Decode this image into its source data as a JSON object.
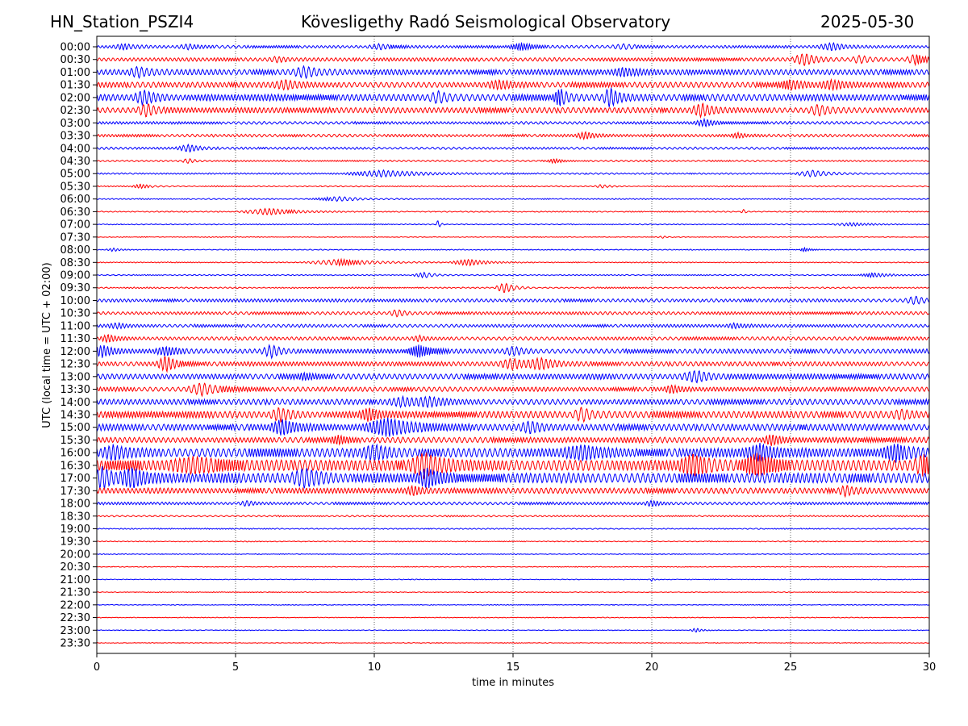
{
  "header": {
    "station": "HN_Station_PSZI4",
    "observatory": "Kövesligethy Radó Seismological Observatory",
    "date": "2025-05-30"
  },
  "chart_data": {
    "type": "line",
    "subtype": "helicorder",
    "xlabel": "time in minutes",
    "ylabel": "UTC (local time = UTC + 02:00)",
    "xlim": [
      0,
      30
    ],
    "xticks": [
      "0",
      "5",
      "10",
      "15",
      "20",
      "25",
      "30"
    ],
    "grid": "vertical dotted lines at 5-minute ticks",
    "colors": [
      "#0000ff",
      "#ff0000"
    ],
    "amplitude_note": "relative amplitudes estimated visually; events are [minute, amplitude, duration_minutes]",
    "rows": [
      {
        "label": "00:00",
        "noise": 1.2,
        "events": [
          [
            1,
            2,
            0.5
          ],
          [
            3.3,
            2,
            0.5
          ],
          [
            10.2,
            2,
            0.5
          ],
          [
            15.3,
            3,
            0.5
          ],
          [
            19,
            2,
            0.5
          ],
          [
            26.5,
            3,
            0.6
          ]
        ]
      },
      {
        "label": "00:30",
        "noise": 1.6,
        "events": [
          [
            6.5,
            2,
            0.4
          ],
          [
            25.5,
            5,
            0.5
          ],
          [
            27.5,
            3,
            0.4
          ],
          [
            29.5,
            4,
            0.4
          ]
        ]
      },
      {
        "label": "01:00",
        "noise": 2.5,
        "events": [
          [
            1.5,
            4,
            0.4
          ],
          [
            7.5,
            4,
            0.5
          ],
          [
            19,
            3,
            0.5
          ]
        ]
      },
      {
        "label": "01:30",
        "noise": 2.5,
        "events": [
          [
            6.8,
            3,
            0.5
          ],
          [
            14.5,
            3,
            0.5
          ],
          [
            25,
            3,
            0.5
          ],
          [
            26.5,
            3,
            0.5
          ]
        ]
      },
      {
        "label": "02:00",
        "noise": 3,
        "events": [
          [
            1.7,
            5,
            0.4
          ],
          [
            12.3,
            4,
            0.4
          ],
          [
            16.7,
            7,
            0.3
          ],
          [
            18.5,
            8,
            0.3
          ]
        ]
      },
      {
        "label": "02:30",
        "noise": 2.5,
        "events": [
          [
            1.8,
            5,
            0.4
          ],
          [
            21.8,
            5,
            0.4
          ],
          [
            26,
            4,
            0.4
          ]
        ]
      },
      {
        "label": "03:00",
        "noise": 1.2,
        "events": [
          [
            21.9,
            3,
            0.4
          ]
        ]
      },
      {
        "label": "03:30",
        "noise": 1.2,
        "events": [
          [
            17.6,
            3,
            0.4
          ],
          [
            23.1,
            2,
            0.3
          ]
        ]
      },
      {
        "label": "04:00",
        "noise": 1,
        "events": [
          [
            3.3,
            3,
            0.5
          ]
        ]
      },
      {
        "label": "04:30",
        "noise": 0.6,
        "events": [
          [
            3.3,
            2,
            0.3
          ],
          [
            16.5,
            2,
            0.3
          ]
        ]
      },
      {
        "label": "05:00",
        "noise": 0.6,
        "events": [
          [
            10.3,
            3,
            1.5
          ],
          [
            25.8,
            3,
            0.7
          ]
        ]
      },
      {
        "label": "05:30",
        "noise": 0.4,
        "events": [
          [
            1.6,
            2,
            0.4
          ],
          [
            18.2,
            1.5,
            0.3
          ]
        ]
      },
      {
        "label": "06:00",
        "noise": 0.4,
        "events": [
          [
            8.7,
            2,
            1
          ]
        ]
      },
      {
        "label": "06:30",
        "noise": 0.4,
        "events": [
          [
            6.2,
            3,
            1.2
          ],
          [
            23.3,
            2,
            0.1
          ]
        ]
      },
      {
        "label": "07:00",
        "noise": 0.3,
        "events": [
          [
            12.3,
            4,
            0.1
          ],
          [
            27.2,
            1.5,
            0.8
          ]
        ]
      },
      {
        "label": "07:30",
        "noise": 0.2,
        "events": [
          [
            20.4,
            1,
            0.2
          ]
        ]
      },
      {
        "label": "08:00",
        "noise": 0.3,
        "events": [
          [
            0.6,
            1.5,
            0.3
          ],
          [
            25.5,
            2,
            0.2
          ]
        ]
      },
      {
        "label": "08:30",
        "noise": 0.3,
        "events": [
          [
            8.8,
            3,
            1.5
          ],
          [
            13.4,
            3,
            0.8
          ]
        ]
      },
      {
        "label": "09:00",
        "noise": 0.4,
        "events": [
          [
            11.8,
            2.5,
            0.5
          ],
          [
            28,
            2,
            0.6
          ]
        ]
      },
      {
        "label": "09:30",
        "noise": 0.5,
        "events": [
          [
            14.7,
            5,
            0.4
          ]
        ]
      },
      {
        "label": "10:00",
        "noise": 1.4,
        "events": [
          [
            29.5,
            3,
            0.5
          ]
        ]
      },
      {
        "label": "10:30",
        "noise": 1.3,
        "events": [
          [
            10.8,
            3,
            0.3
          ]
        ]
      },
      {
        "label": "11:00",
        "noise": 1.3,
        "events": [
          [
            0.7,
            2,
            0.4
          ],
          [
            23,
            2,
            0.4
          ]
        ]
      },
      {
        "label": "11:30",
        "noise": 1.5,
        "events": [
          [
            0.4,
            3,
            0.3
          ],
          [
            11.6,
            2,
            0.3
          ]
        ]
      },
      {
        "label": "12:00",
        "noise": 2,
        "events": [
          [
            0.2,
            5,
            0.4
          ],
          [
            2.5,
            3,
            0.5
          ],
          [
            6.3,
            5,
            0.4
          ],
          [
            11.6,
            5,
            0.5
          ],
          [
            15,
            3,
            0.4
          ]
        ]
      },
      {
        "label": "12:30",
        "noise": 2,
        "events": [
          [
            2.5,
            7,
            0.4
          ],
          [
            15,
            4,
            0.6
          ],
          [
            16,
            4,
            0.6
          ]
        ]
      },
      {
        "label": "13:00",
        "noise": 2.5,
        "events": [
          [
            7.5,
            2,
            0.3
          ],
          [
            21.6,
            4,
            0.6
          ]
        ]
      },
      {
        "label": "13:30",
        "noise": 2,
        "events": [
          [
            3.8,
            5,
            0.6
          ],
          [
            20.7,
            3,
            0.3
          ]
        ]
      },
      {
        "label": "14:00",
        "noise": 2.5,
        "events": [
          [
            11,
            3,
            0.6
          ],
          [
            12,
            3,
            0.6
          ]
        ]
      },
      {
        "label": "14:30",
        "noise": 3,
        "events": [
          [
            6.6,
            5,
            0.4
          ],
          [
            9.8,
            5,
            0.4
          ],
          [
            17.5,
            5,
            0.4
          ],
          [
            29,
            3,
            0.4
          ]
        ]
      },
      {
        "label": "15:00",
        "noise": 3,
        "events": [
          [
            6.7,
            6,
            0.5
          ],
          [
            10.5,
            7,
            1
          ],
          [
            15.6,
            4,
            0.4
          ]
        ]
      },
      {
        "label": "15:30",
        "noise": 2.5,
        "events": [
          [
            8.7,
            3,
            0.3
          ],
          [
            24.3,
            4,
            0.3
          ]
        ]
      },
      {
        "label": "16:00",
        "noise": 4,
        "events": [
          [
            0.6,
            5,
            0.5
          ],
          [
            10,
            5,
            0.5
          ],
          [
            17.5,
            5,
            0.8
          ],
          [
            23.9,
            6,
            0.6
          ],
          [
            28.8,
            6,
            0.6
          ]
        ]
      },
      {
        "label": "16:30",
        "noise": 5,
        "events": [
          [
            3.5,
            5,
            1
          ],
          [
            11.8,
            9,
            0.6
          ],
          [
            21.5,
            8,
            0.6
          ],
          [
            23.8,
            8,
            0.6
          ],
          [
            29.8,
            7,
            0.4
          ]
        ]
      },
      {
        "label": "17:00",
        "noise": 4.5,
        "events": [
          [
            0.2,
            8,
            0.4
          ],
          [
            1.3,
            7,
            0.5
          ],
          [
            7.5,
            6,
            0.6
          ],
          [
            11.9,
            7,
            0.4
          ]
        ]
      },
      {
        "label": "17:30",
        "noise": 2.5,
        "events": [
          [
            11.4,
            3,
            0.3
          ],
          [
            27,
            4,
            0.3
          ]
        ]
      },
      {
        "label": "18:00",
        "noise": 1.2,
        "events": [
          [
            5.4,
            2,
            0.3
          ],
          [
            20,
            2,
            0.3
          ]
        ]
      },
      {
        "label": "18:30",
        "noise": 0.6,
        "events": []
      },
      {
        "label": "19:00",
        "noise": 0.4,
        "events": []
      },
      {
        "label": "19:30",
        "noise": 0.3,
        "events": []
      },
      {
        "label": "20:00",
        "noise": 0.2,
        "events": []
      },
      {
        "label": "20:30",
        "noise": 0.2,
        "events": []
      },
      {
        "label": "21:00",
        "noise": 0.2,
        "events": [
          [
            20,
            1.5,
            0.1
          ]
        ]
      },
      {
        "label": "21:30",
        "noise": 0.2,
        "events": []
      },
      {
        "label": "22:00",
        "noise": 0.2,
        "events": []
      },
      {
        "label": "22:30",
        "noise": 0.2,
        "events": []
      },
      {
        "label": "23:00",
        "noise": 0.2,
        "events": [
          [
            21.6,
            2,
            0.3
          ]
        ]
      },
      {
        "label": "23:30",
        "noise": 0.15,
        "events": []
      }
    ]
  }
}
